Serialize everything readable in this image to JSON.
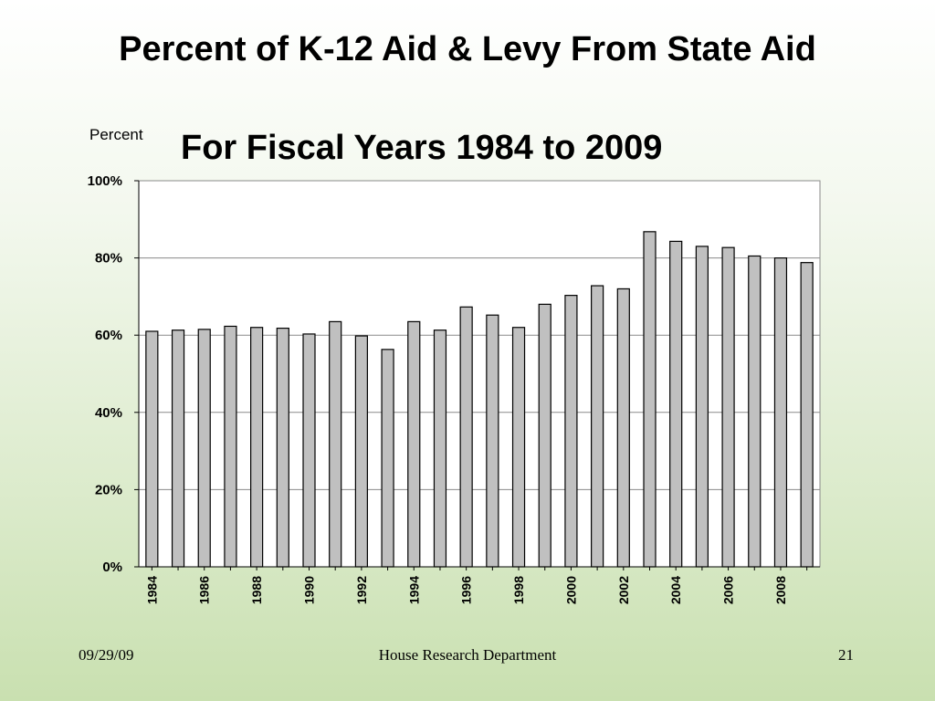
{
  "slide": {
    "title_line1": "Percent of K-12 Aid & Levy From State Aid",
    "title_line2": "For Fiscal Years 1984 to 2009"
  },
  "footer": {
    "date": "09/29/09",
    "department": "House Research Department",
    "page_number": "21"
  },
  "chart_data": {
    "type": "bar",
    "title": "Percent of K-12 Aid & Levy From State Aid For Fiscal Years 1984 to 2009",
    "ylabel": "Percent",
    "xlabel": "",
    "ylim": [
      0,
      100
    ],
    "y_ticks": [
      "0%",
      "20%",
      "40%",
      "60%",
      "80%",
      "100%"
    ],
    "y_tick_values": [
      0,
      20,
      40,
      60,
      80,
      100
    ],
    "grid": true,
    "bar_color": "#c0c0c0",
    "categories": [
      "1984",
      "1985",
      "1986",
      "1987",
      "1988",
      "1989",
      "1990",
      "1991",
      "1992",
      "1993",
      "1994",
      "1995",
      "1996",
      "1997",
      "1998",
      "1999",
      "2000",
      "2001",
      "2002",
      "2003",
      "2004",
      "2005",
      "2006",
      "2007",
      "2008",
      "2009"
    ],
    "x_tick_labels": [
      "1984",
      "1986",
      "1988",
      "1990",
      "1992",
      "1994",
      "1996",
      "1998",
      "2000",
      "2002",
      "2004",
      "2006",
      "2008"
    ],
    "values": [
      61,
      61.3,
      61.5,
      62.3,
      62,
      61.8,
      60.3,
      63.5,
      59.8,
      56.3,
      63.5,
      61.3,
      67.3,
      65.2,
      62,
      68,
      70.3,
      72.8,
      72,
      86.8,
      84.3,
      83,
      82.7,
      80.5,
      80,
      78.8
    ]
  }
}
